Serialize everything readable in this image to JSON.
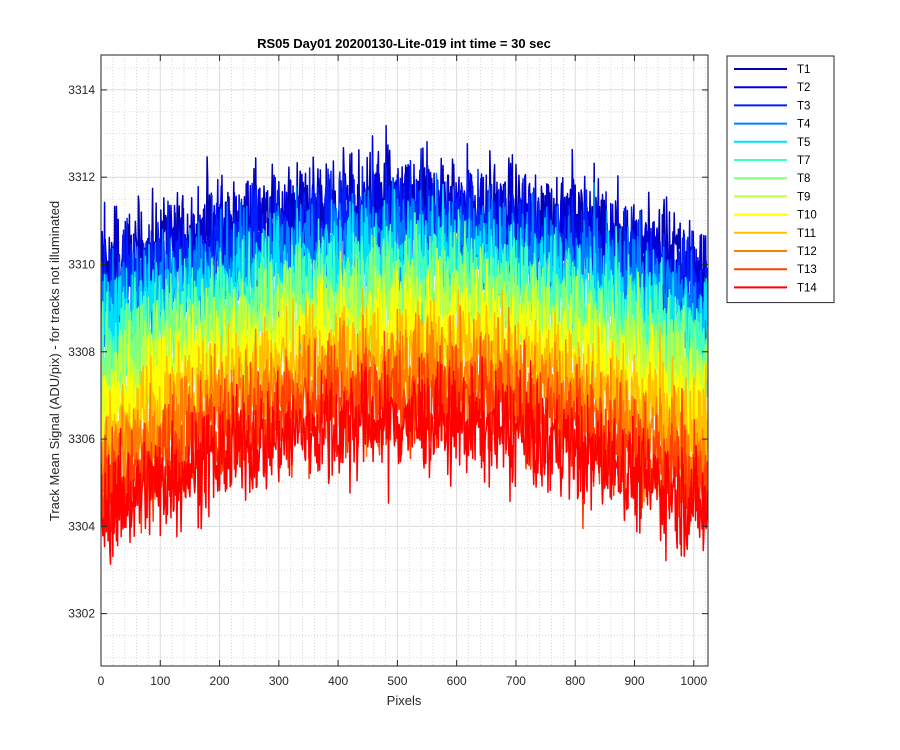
{
  "chart_data": {
    "type": "line",
    "title": "RS05 Day01 20200130-Lite-019 int time = 30 sec",
    "xlabel": "Pixels",
    "ylabel": "Track Mean Signal (ADU/pix) - for tracks not illuminated",
    "xlim": [
      0,
      1024
    ],
    "ylim": [
      3300.8,
      3314.8
    ],
    "xticks": [
      0,
      100,
      200,
      300,
      400,
      500,
      600,
      700,
      800,
      900,
      1000
    ],
    "yticks": [
      3302,
      3304,
      3306,
      3308,
      3310,
      3312,
      3314
    ],
    "grid": true,
    "minor_grid": true,
    "legend_position": "outside-top-right",
    "n_points": 1024,
    "series": [
      {
        "name": "T1",
        "color": "#0000AF",
        "edge_level": 3309.8,
        "center_level": 3311.3
      },
      {
        "name": "T2",
        "color": "#0000DF",
        "edge_level": 3309.6,
        "center_level": 3311.1
      },
      {
        "name": "T3",
        "color": "#0020FF",
        "edge_level": 3309.3,
        "center_level": 3310.9
      },
      {
        "name": "T4",
        "color": "#0080FF",
        "edge_level": 3308.9,
        "center_level": 3310.5
      },
      {
        "name": "T5",
        "color": "#00DFFF",
        "edge_level": 3308.5,
        "center_level": 3310.1
      },
      {
        "name": "T7",
        "color": "#40FFBF",
        "edge_level": 3308.0,
        "center_level": 3309.7
      },
      {
        "name": "T8",
        "color": "#80FF80",
        "edge_level": 3307.6,
        "center_level": 3309.3
      },
      {
        "name": "T9",
        "color": "#BFFF40",
        "edge_level": 3307.1,
        "center_level": 3308.9
      },
      {
        "name": "T10",
        "color": "#FFFF00",
        "edge_level": 3306.6,
        "center_level": 3308.5
      },
      {
        "name": "T11",
        "color": "#FFBF00",
        "edge_level": 3306.0,
        "center_level": 3308.0
      },
      {
        "name": "T12",
        "color": "#FF8000",
        "edge_level": 3305.4,
        "center_level": 3307.5
      },
      {
        "name": "T13",
        "color": "#FF4000",
        "edge_level": 3304.8,
        "center_level": 3307.0
      },
      {
        "name": "T14",
        "color": "#FF0000",
        "edge_level": 3304.3,
        "center_level": 3306.4
      }
    ]
  }
}
